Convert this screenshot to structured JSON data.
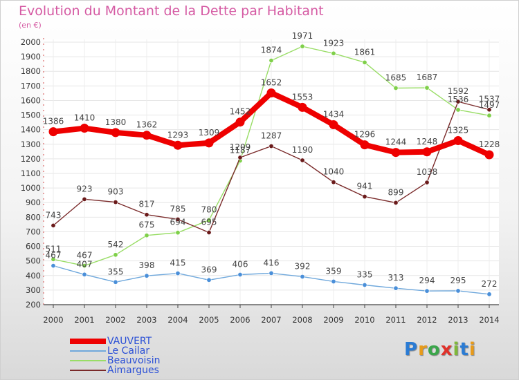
{
  "title": "Evolution du Montant de la Dette par Habitant",
  "unit": "(en €)",
  "logo": "Proxiti",
  "chart_data": {
    "type": "line",
    "title": "Evolution du Montant de la Dette par Habitant",
    "ylabel": "(en €)",
    "x": [
      "2000",
      "2001",
      "2002",
      "2003",
      "2004",
      "2005",
      "2006",
      "2007",
      "2008",
      "2009",
      "2010",
      "2011",
      "2012",
      "2013",
      "2014"
    ],
    "ylim": [
      200,
      2000
    ],
    "yticks": [
      200,
      300,
      400,
      500,
      600,
      700,
      800,
      900,
      1000,
      1100,
      1200,
      1300,
      1400,
      1500,
      1600,
      1700,
      1800,
      1900,
      2000
    ],
    "grid": true,
    "legend": "bottom-left",
    "series": [
      {
        "name": "VAUVERT",
        "color": "#ee0000",
        "values": [
          1386,
          1410,
          1380,
          1362,
          1293,
          1309,
          1452,
          1652,
          1553,
          1434,
          1296,
          1244,
          1248,
          1325,
          1228
        ]
      },
      {
        "name": "Le Cailar",
        "color": "#6fa8dc",
        "values": [
          467,
          407,
          355,
          398,
          415,
          369,
          406,
          416,
          392,
          359,
          335,
          313,
          294,
          295,
          272
        ]
      },
      {
        "name": "Beauvoisin",
        "color": "#99dd66",
        "values": [
          511,
          467,
          542,
          675,
          694,
          780,
          1187,
          1874,
          1971,
          1923,
          1861,
          1685,
          1687,
          1536,
          1497
        ]
      },
      {
        "name": "Aimargues",
        "color": "#7a2a2a",
        "values": [
          743,
          923,
          903,
          817,
          785,
          695,
          1209,
          1287,
          1190,
          1040,
          941,
          899,
          1038,
          1592,
          1537
        ]
      }
    ]
  }
}
